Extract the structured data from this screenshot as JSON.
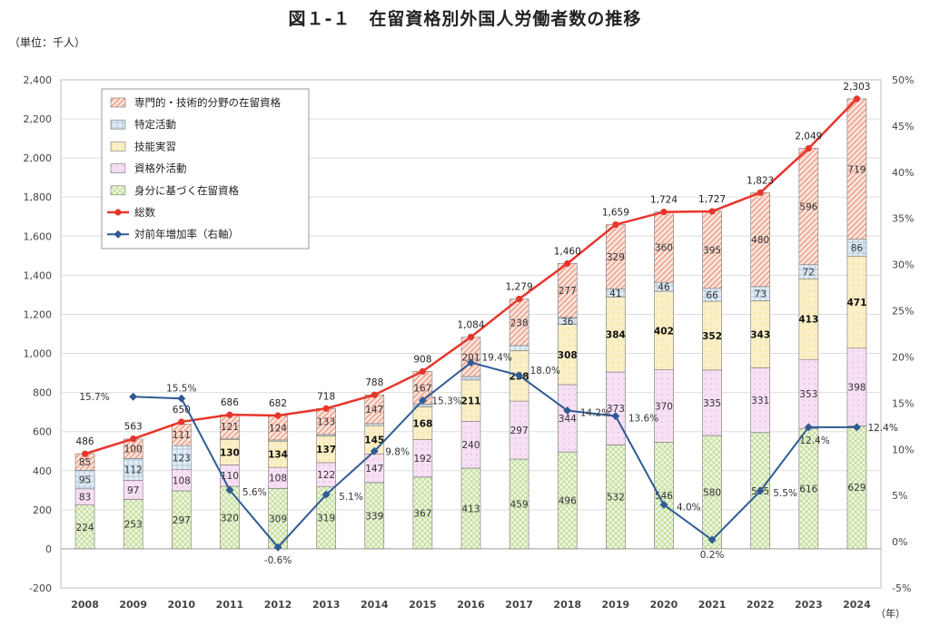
{
  "header": {
    "title": "図１-１　在留資格別外国人労働者数の推移",
    "unit": "（単位：千人）",
    "year_suffix": "（年）"
  },
  "colors": {
    "specialist": "#e9967a",
    "designated": "#9fbcd6",
    "technical_intern": "#f3d36b",
    "outside_status": "#e4a6dc",
    "status_based": "#b9d98b",
    "total_line": "#e8352b",
    "rate_line": "#2f5b94"
  },
  "chart_data": {
    "type": "bar",
    "title": "在留資格別外国人労働者数の推移",
    "categories": [
      "2008",
      "2009",
      "2010",
      "2011",
      "2012",
      "2013",
      "2014",
      "2015",
      "2016",
      "2017",
      "2018",
      "2019",
      "2020",
      "2021",
      "2022",
      "2023",
      "2024"
    ],
    "left_axis": {
      "min": -200,
      "max": 2400,
      "step": 200,
      "ticks": [
        "-200",
        "0",
        "200",
        "400",
        "600",
        "800",
        "1,000",
        "1,200",
        "1,400",
        "1,600",
        "1,800",
        "2,000",
        "2,200",
        "2,400"
      ]
    },
    "right_axis": {
      "min": -5,
      "max": 50,
      "step": 5,
      "ticks": [
        "-5%",
        "0%",
        "5%",
        "10%",
        "15%",
        "20%",
        "25%",
        "30%",
        "35%",
        "40%",
        "45%",
        "50%"
      ]
    },
    "series": [
      {
        "key": "status_based",
        "name": "身分に基づく在留資格",
        "values": [
          224,
          253,
          297,
          320,
          309,
          319,
          339,
          367,
          413,
          459,
          496,
          532,
          546,
          580,
          595,
          616,
          629
        ],
        "labels": [
          "224",
          "253",
          "297",
          "320",
          "309",
          "319",
          "339",
          "367",
          "413",
          "459",
          "496",
          "532",
          "546",
          "580",
          "595",
          "616",
          "629"
        ]
      },
      {
        "key": "outside_status",
        "name": "資格外活動",
        "values": [
          83,
          97,
          108,
          110,
          108,
          122,
          147,
          192,
          240,
          297,
          344,
          373,
          370,
          335,
          331,
          353,
          398
        ],
        "labels": [
          "83",
          "97",
          "108",
          "110",
          "108",
          "122",
          "147",
          "192",
          "240",
          "297",
          "344",
          "373",
          "370",
          "335",
          "331",
          "353",
          "398"
        ]
      },
      {
        "key": "technical_intern",
        "name": "技能実習",
        "values": [
          0,
          0,
          0,
          130,
          134,
          137,
          145,
          168,
          211,
          258,
          308,
          384,
          402,
          352,
          343,
          413,
          471
        ],
        "labels": [
          "",
          "",
          "",
          "130",
          "134",
          "137",
          "145",
          "168",
          "211",
          "258",
          "308",
          "384",
          "402",
          "352",
          "343",
          "413",
          "471"
        ]
      },
      {
        "key": "designated",
        "name": "特定活動",
        "values": [
          95,
          112,
          123,
          5,
          6,
          7,
          10,
          14,
          18,
          26,
          36,
          41,
          46,
          66,
          73,
          72,
          86
        ],
        "labels": [
          "95",
          "112",
          "123",
          "",
          "",
          "",
          "",
          "",
          "",
          "",
          "36",
          "41",
          "46",
          "66",
          "73",
          "72",
          "86"
        ]
      },
      {
        "key": "specialist",
        "name": "専門的・技術的分野の在留資格",
        "values": [
          85,
          100,
          111,
          121,
          124,
          133,
          147,
          167,
          201,
          238,
          277,
          329,
          360,
          395,
          480,
          596,
          719
        ],
        "labels": [
          "85",
          "100",
          "111",
          "121",
          "124",
          "133",
          "147",
          "167",
          "201",
          "238",
          "277",
          "329",
          "360",
          "395",
          "480",
          "596",
          "719"
        ]
      }
    ],
    "total": {
      "name": "総数",
      "values": [
        486,
        563,
        650,
        686,
        682,
        718,
        788,
        908,
        1084,
        1279,
        1460,
        1659,
        1724,
        1727,
        1823,
        2049,
        2303
      ],
      "labels": [
        "486",
        "563",
        "650",
        "686",
        "682",
        "718",
        "788",
        "908",
        "1,084",
        "1,279",
        "1,460",
        "1,659",
        "1,724",
        "1,727",
        "1,823",
        "2,049",
        "2,303"
      ]
    },
    "growth_rate": {
      "name": "対前年増加率（右軸）",
      "values": [
        null,
        15.7,
        15.5,
        5.6,
        -0.6,
        5.1,
        9.8,
        15.3,
        19.4,
        18.0,
        14.2,
        13.6,
        4.0,
        0.2,
        5.5,
        12.4,
        12.4
      ],
      "labels": [
        "",
        "15.7%",
        "15.5%",
        "5.6%",
        "-0.6%",
        "5.1%",
        "9.8%",
        "15.3%",
        "19.4%",
        "18.0%",
        "14.2%",
        "13.6%",
        "4.0%",
        "0.2%",
        "5.5%",
        "12.4%",
        "12.4%"
      ]
    },
    "legend": {
      "position": "top-left",
      "items": [
        {
          "key": "specialist",
          "label": "専門的・技術的分野の在留資格",
          "kind": "bar"
        },
        {
          "key": "designated",
          "label": "特定活動",
          "kind": "bar"
        },
        {
          "key": "technical_intern",
          "label": "技能実習",
          "kind": "bar"
        },
        {
          "key": "outside_status",
          "label": "資格外活動",
          "kind": "bar"
        },
        {
          "key": "status_based",
          "label": "身分に基づく在留資格",
          "kind": "bar"
        },
        {
          "key": "total",
          "label": "総数",
          "kind": "line"
        },
        {
          "key": "rate",
          "label": "対前年増加率（右軸）",
          "kind": "line"
        }
      ]
    }
  }
}
